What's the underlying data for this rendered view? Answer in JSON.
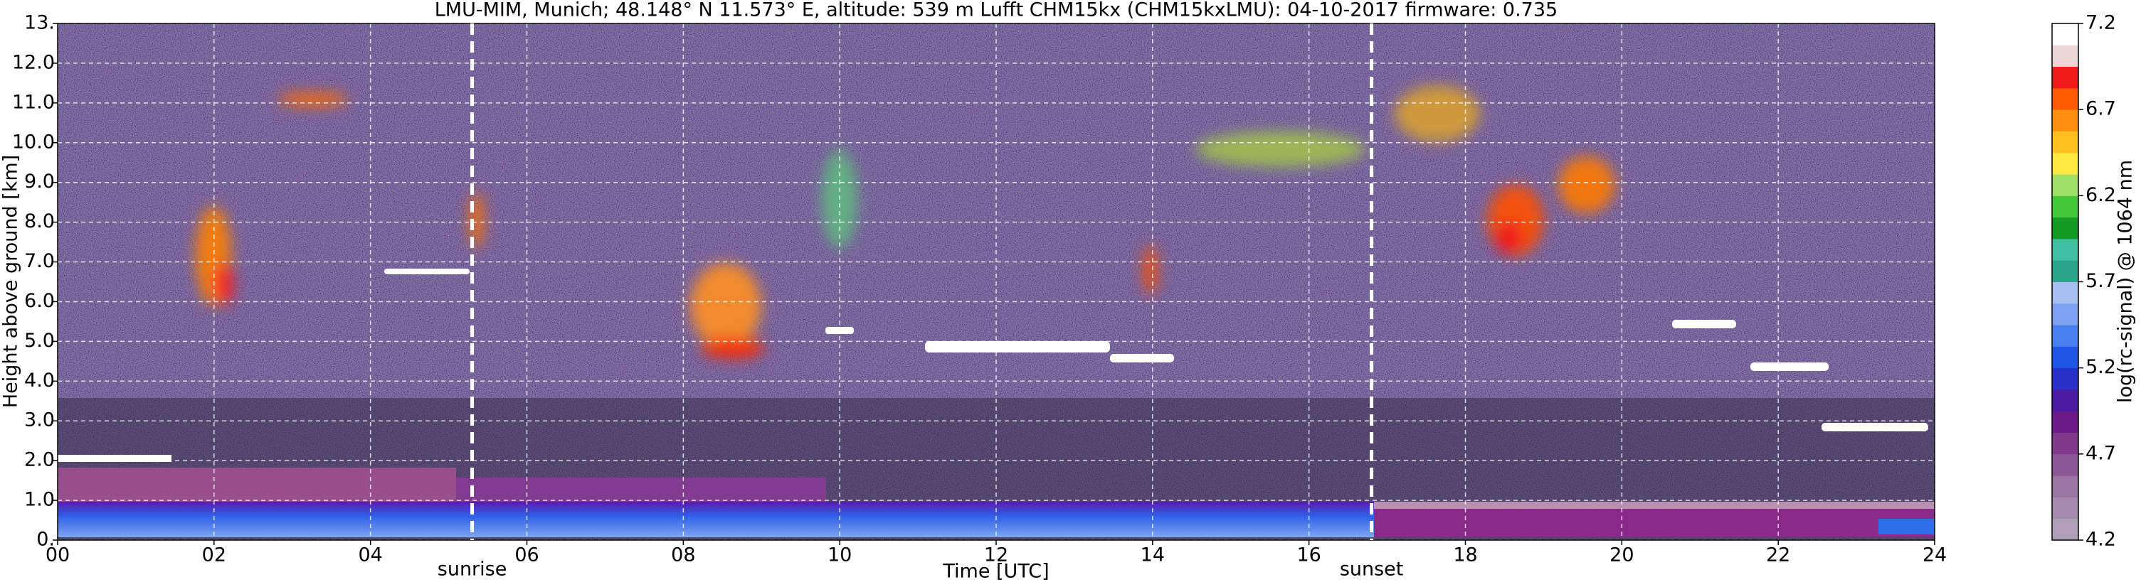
{
  "chart_data": {
    "type": "heatmap",
    "title": "LMU-MIM, Munich; 48.148° N 11.573° E, altitude: 539 m    Lufft CHM15kx (CHM15kxLMU): 04-10-2017    firmware: 0.735",
    "x_label": "Time [UTC]",
    "y_label": "Height above ground [km]",
    "xlim": [
      0,
      24
    ],
    "xticks": [
      {
        "value": 0,
        "label": "00"
      },
      {
        "value": 2,
        "label": "02"
      },
      {
        "value": 4,
        "label": "04"
      },
      {
        "value": 6,
        "label": "06"
      },
      {
        "value": 8,
        "label": "08"
      },
      10,
      12,
      14,
      16,
      18,
      20,
      22,
      24
    ],
    "ylim": [
      0,
      13
    ],
    "yticks": [
      {
        "value": 0,
        "label": "0."
      },
      {
        "value": 1,
        "label": "1.0"
      },
      {
        "value": 2,
        "label": "2.0"
      },
      {
        "value": 3,
        "label": "3.0"
      },
      {
        "value": 4,
        "label": "4.0"
      },
      {
        "value": 5,
        "label": "5.0"
      },
      {
        "value": 6,
        "label": "6.0"
      },
      {
        "value": 7,
        "label": "7.0"
      },
      {
        "value": 8,
        "label": "8.0"
      },
      {
        "value": 9,
        "label": "9.0"
      },
      {
        "value": 10,
        "label": "10.0"
      },
      {
        "value": 11,
        "label": "11.0"
      },
      {
        "value": 12,
        "label": "12.0"
      },
      {
        "value": 13,
        "label": "13."
      }
    ],
    "grid": true,
    "annotations": [
      {
        "text": "sunrise",
        "x": 5.3
      },
      {
        "text": "sunset",
        "x": 16.8
      }
    ],
    "colorbar": {
      "label": "log(rc-signal) @ 1064 nm",
      "lim": [
        4.2,
        7.2
      ],
      "ticks": [
        4.2,
        4.7,
        5.2,
        5.7,
        6.2,
        6.7,
        7.2
      ],
      "colors": [
        "#b0a0b8",
        "#a58cae",
        "#9a74a3",
        "#8c5796",
        "#7f3a8c",
        "#6a1a8a",
        "#4a1aa0",
        "#2a2fc8",
        "#1f55e6",
        "#4a80f0",
        "#7ea2f2",
        "#a6bdf2",
        "#2aa58a",
        "#40c0a0",
        "#169a26",
        "#46c63a",
        "#a0e06a",
        "#ffe640",
        "#ffc020",
        "#ff9010",
        "#ff5a00",
        "#f01818",
        "#ecd4d4",
        "#ffffff"
      ]
    }
  }
}
